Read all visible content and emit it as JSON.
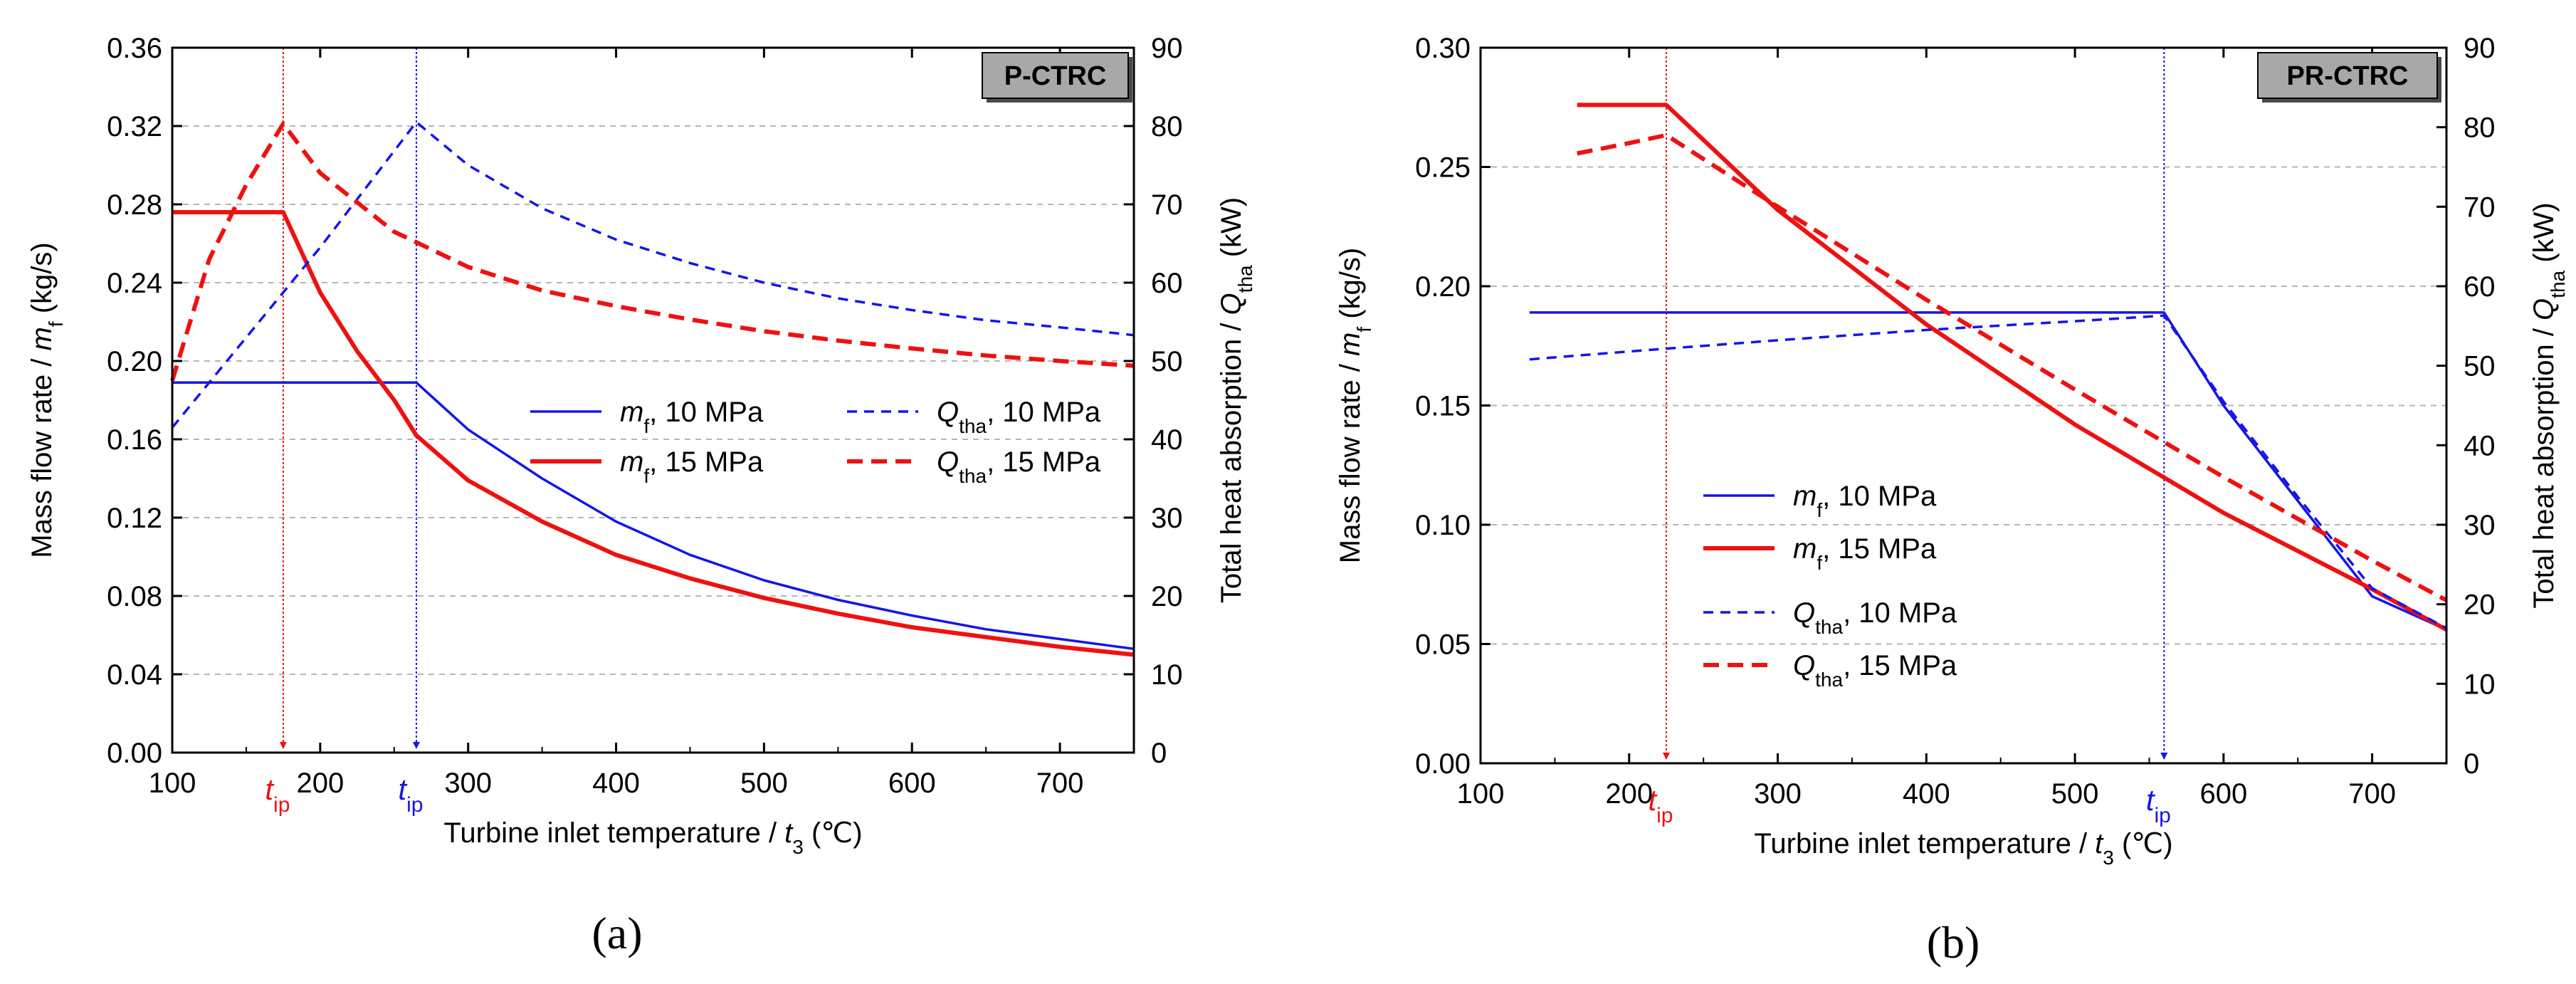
{
  "figure": {
    "panels": [
      "(a)",
      "(b)"
    ],
    "tip_label": "t",
    "tip_sub": "ip"
  },
  "colors": {
    "blue": "#1515e8",
    "red": "#ee1111",
    "grid": "#b5b5b5"
  },
  "chart_data": [
    {
      "type": "line",
      "tag": "P-CTRC",
      "panel_label": "(a)",
      "xlabel": "Turbine inlet temperature / t3 (℃)",
      "ylabel_left": "Mass flow rate / mf (kg/s)",
      "ylabel_right": "Total heat absorption / Qtha (kW)",
      "xlim": [
        100,
        750
      ],
      "xticks": [
        100,
        200,
        300,
        400,
        500,
        600,
        700
      ],
      "ylim_left": [
        0,
        0.36
      ],
      "yticks_left": [
        "0.00",
        "0.04",
        "0.08",
        "0.12",
        "0.16",
        "0.20",
        "0.24",
        "0.28",
        "0.32",
        "0.36"
      ],
      "ylim_right": [
        0,
        90
      ],
      "yticks_right": [
        "0",
        "10",
        "20",
        "30",
        "40",
        "50",
        "60",
        "70",
        "80",
        "90"
      ],
      "grid": "horizontal dashed",
      "legend_position": "center-right",
      "tip_markers": [
        {
          "x": 175,
          "color": "red"
        },
        {
          "x": 265,
          "color": "blue"
        }
      ],
      "series": [
        {
          "name": "mf, 10 MPa",
          "legend_main": "m",
          "legend_sub": "f",
          "legend_rest": ", 10 MPa",
          "axis": "left",
          "color": "blue",
          "style": "solid",
          "width": "thin",
          "x": [
            100,
            150,
            200,
            265,
            300,
            350,
            400,
            450,
            500,
            550,
            600,
            650,
            700,
            750
          ],
          "y": [
            0.189,
            0.189,
            0.189,
            0.189,
            0.165,
            0.14,
            0.118,
            0.101,
            0.088,
            0.078,
            0.07,
            0.063,
            0.058,
            0.053
          ]
        },
        {
          "name": "mf, 15 MPa",
          "legend_main": "m",
          "legend_sub": "f",
          "legend_rest": ", 15 MPa",
          "axis": "left",
          "color": "red",
          "style": "solid",
          "width": "thick",
          "x": [
            100,
            150,
            175,
            200,
            225,
            250,
            265,
            300,
            350,
            400,
            450,
            500,
            550,
            600,
            650,
            700,
            750
          ],
          "y": [
            0.276,
            0.276,
            0.276,
            0.235,
            0.205,
            0.18,
            0.162,
            0.139,
            0.118,
            0.101,
            0.089,
            0.079,
            0.071,
            0.064,
            0.059,
            0.054,
            0.05
          ]
        },
        {
          "name": "Qtha, 10 MPa",
          "legend_main": "Q",
          "legend_sub": "tha",
          "legend_rest": ", 10 MPa",
          "axis": "right",
          "color": "blue",
          "style": "dashed",
          "width": "thin",
          "x": [
            100,
            150,
            200,
            265,
            300,
            350,
            400,
            450,
            500,
            550,
            600,
            650,
            700,
            750
          ],
          "y": [
            41.5,
            53,
            64.5,
            80.5,
            75,
            69.5,
            65.5,
            62.5,
            60,
            58,
            56.5,
            55.2,
            54.3,
            53.3
          ]
        },
        {
          "name": "Qtha, 15 MPa",
          "legend_main": "Q",
          "legend_sub": "tha",
          "legend_rest": ", 15 MPa",
          "axis": "right",
          "color": "red",
          "style": "dashed",
          "width": "thick",
          "x": [
            100,
            125,
            150,
            175,
            200,
            250,
            300,
            350,
            400,
            450,
            500,
            550,
            600,
            650,
            700,
            750
          ],
          "y": [
            47.5,
            63,
            72.5,
            80.3,
            74,
            66.5,
            62,
            59,
            57,
            55.3,
            53.8,
            52.6,
            51.6,
            50.7,
            50,
            49.4
          ]
        }
      ]
    },
    {
      "type": "line",
      "tag": "PR-CTRC",
      "panel_label": "(b)",
      "xlabel": "Turbine inlet temperature / t3 (℃)",
      "ylabel_left": "Mass flow rate / mf (kg/s)",
      "ylabel_right": "Total heat absorption / Qtha (kW)",
      "xlim": [
        100,
        750
      ],
      "xticks": [
        100,
        200,
        300,
        400,
        500,
        600,
        700
      ],
      "ylim_left": [
        0,
        0.3
      ],
      "yticks_left": [
        "0.00",
        "0.05",
        "0.10",
        "0.15",
        "0.20",
        "0.25",
        "0.30"
      ],
      "ylim_right": [
        0,
        90
      ],
      "yticks_right": [
        "0",
        "10",
        "20",
        "30",
        "40",
        "50",
        "60",
        "70",
        "80",
        "90"
      ],
      "grid": "horizontal dashed",
      "legend_position": "center-left",
      "tip_markers": [
        {
          "x": 225,
          "color": "red"
        },
        {
          "x": 560,
          "color": "blue"
        }
      ],
      "series": [
        {
          "name": "mf, 10 MPa",
          "legend_main": "m",
          "legend_sub": "f",
          "legend_rest": ", 10 MPa",
          "axis": "left",
          "color": "blue",
          "style": "solid",
          "width": "thin",
          "x": [
            133,
            200,
            300,
            400,
            500,
            560,
            600,
            650,
            700,
            750
          ],
          "y": [
            0.189,
            0.189,
            0.189,
            0.189,
            0.189,
            0.189,
            0.15,
            0.11,
            0.07,
            0.056
          ]
        },
        {
          "name": "mf, 15 MPa",
          "legend_main": "m",
          "legend_sub": "f",
          "legend_rest": ", 15 MPa",
          "axis": "left",
          "color": "red",
          "style": "solid",
          "width": "thick",
          "x": [
            165,
            200,
            225,
            300,
            400,
            500,
            600,
            700,
            750
          ],
          "y": [
            0.276,
            0.276,
            0.276,
            0.232,
            0.184,
            0.142,
            0.105,
            0.073,
            0.056
          ]
        },
        {
          "name": "Qtha, 10 MPa",
          "legend_main": "Q",
          "legend_sub": "tha",
          "legend_rest": ", 10 MPa",
          "axis": "right",
          "color": "blue",
          "style": "dashed",
          "width": "thin",
          "x": [
            133,
            200,
            300,
            400,
            500,
            560,
            600,
            650,
            700,
            750
          ],
          "y": [
            50.8,
            51.8,
            53.2,
            54.5,
            55.6,
            56.3,
            45.5,
            33.5,
            22,
            17
          ]
        },
        {
          "name": "Qtha, 15 MPa",
          "legend_main": "Q",
          "legend_sub": "tha",
          "legend_rest": ", 15 MPa",
          "axis": "right",
          "color": "red",
          "style": "dashed",
          "width": "thick",
          "x": [
            165,
            200,
            225,
            300,
            400,
            500,
            600,
            700,
            750
          ],
          "y": [
            76.7,
            78,
            79,
            70,
            58.3,
            47,
            36,
            25.5,
            20.5
          ]
        }
      ]
    }
  ]
}
